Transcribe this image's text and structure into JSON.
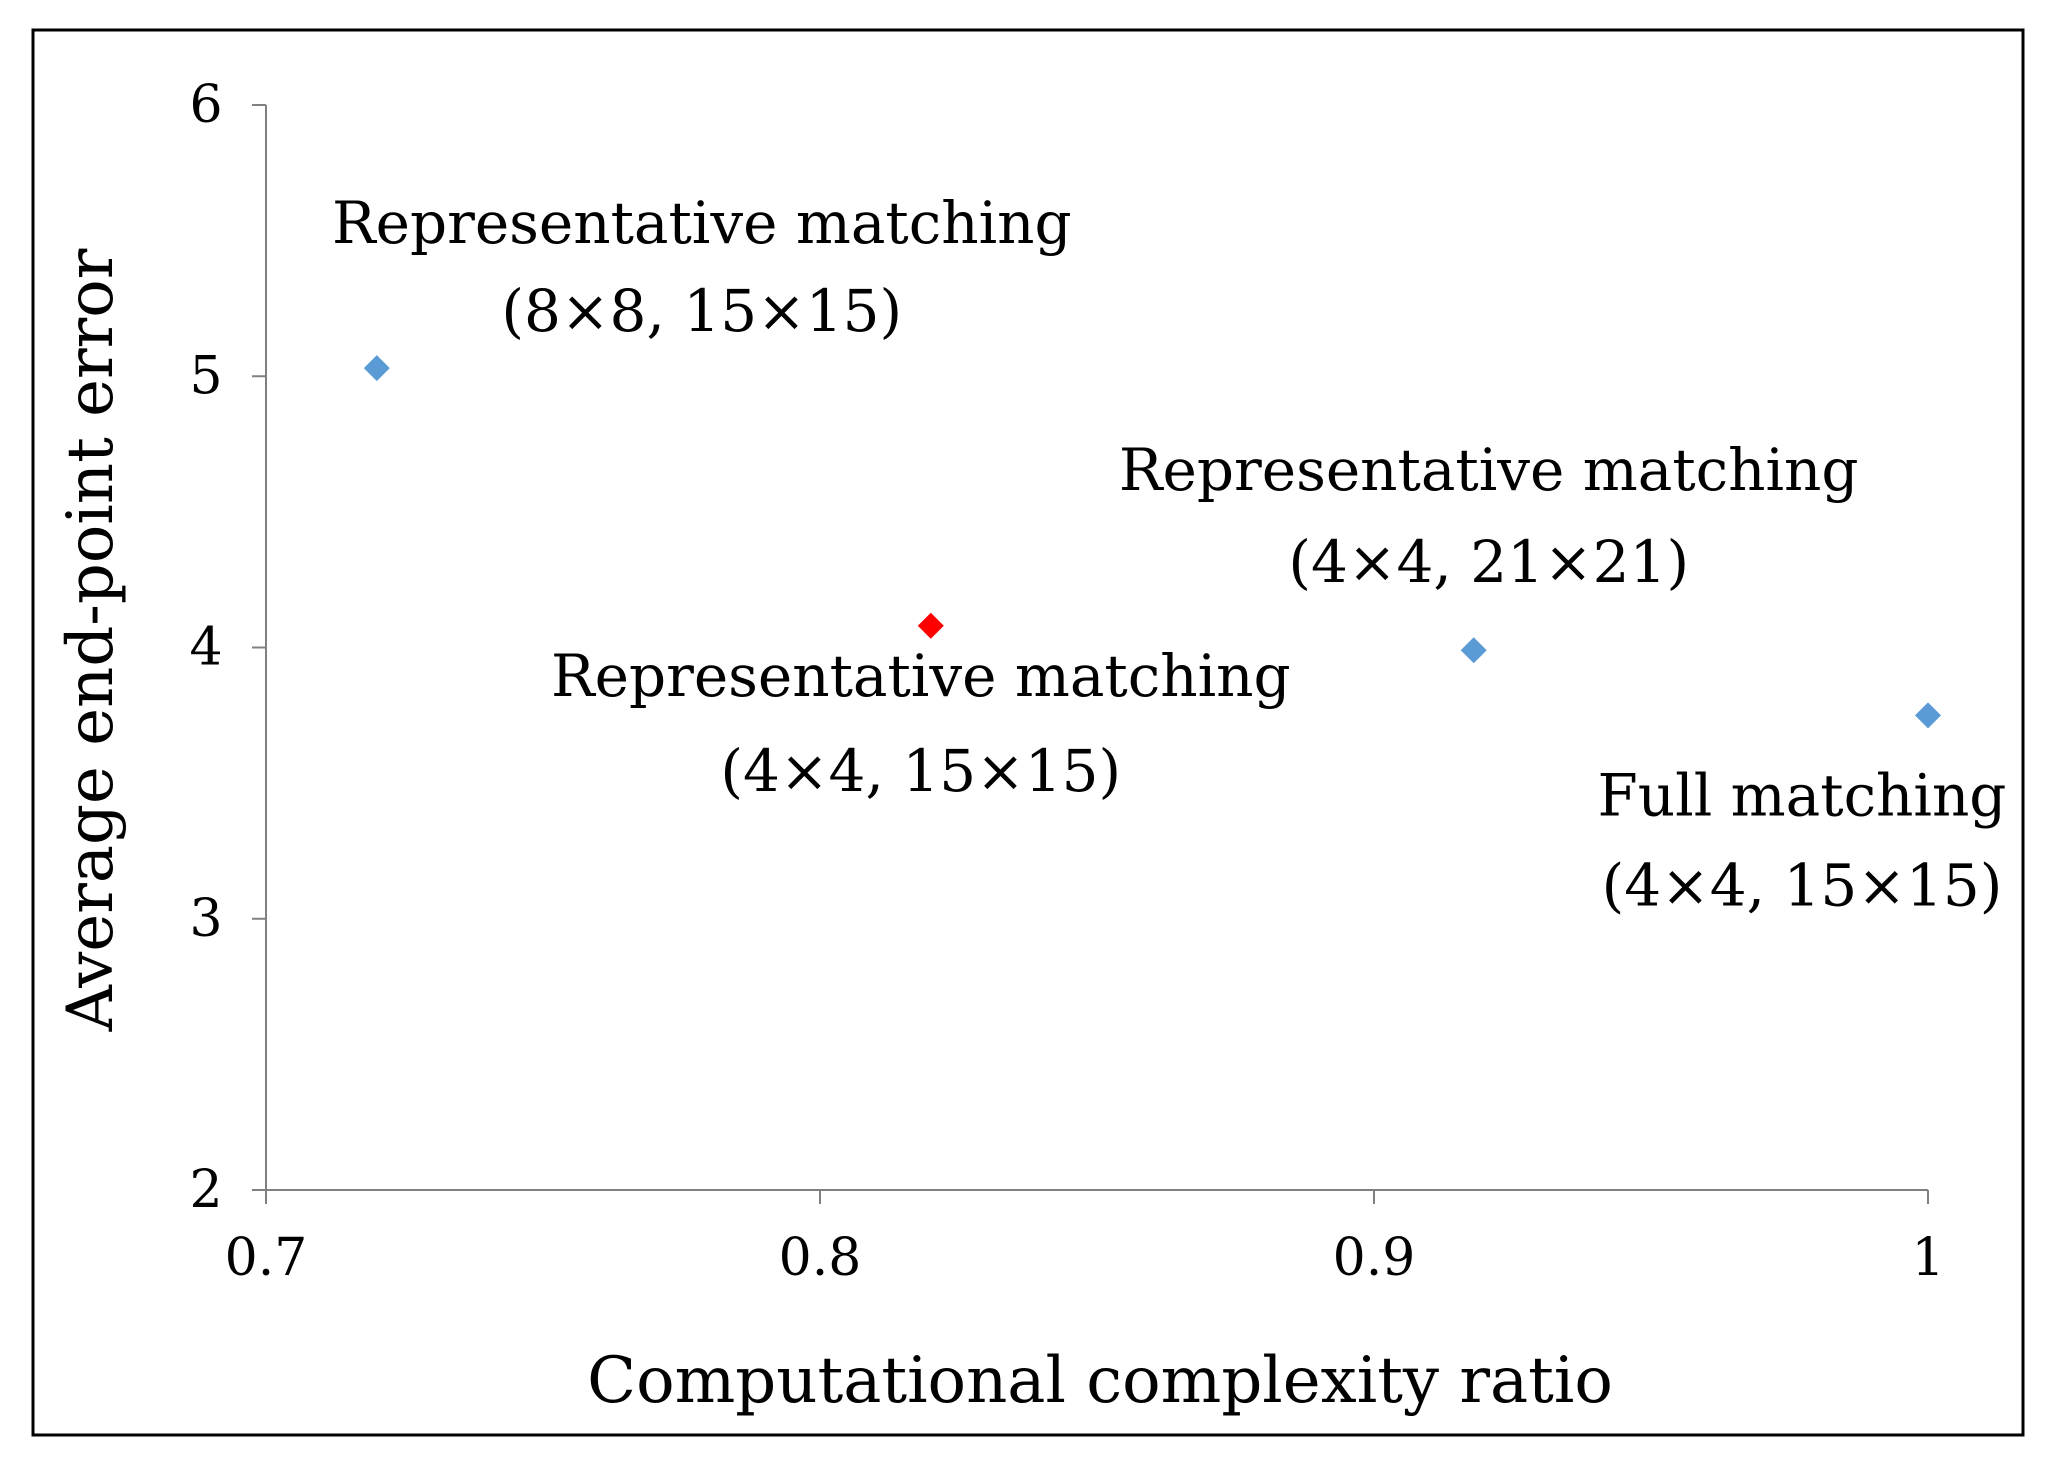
{
  "chart_data": {
    "type": "scatter",
    "xlabel": "Computational complexity ratio",
    "ylabel": "Average end-point error",
    "xlim": [
      0.7,
      1.0
    ],
    "ylim": [
      2,
      6
    ],
    "xticks": [
      "0.7",
      "0.8",
      "0.9",
      "1"
    ],
    "yticks": [
      "2",
      "3",
      "4",
      "5",
      "6"
    ],
    "grid": false,
    "legend": "none",
    "points": [
      {
        "x": 0.72,
        "y": 5.03,
        "color": "#5b9bd5",
        "label": [
          "Representative matching",
          "(8×8, 15×15)"
        ]
      },
      {
        "x": 0.82,
        "y": 4.08,
        "color": "#ff0000",
        "label": [
          "Representative matching",
          "(4×4, 15×15)"
        ]
      },
      {
        "x": 0.918,
        "y": 3.99,
        "color": "#5b9bd5",
        "label": [
          "Representative matching",
          "(4×4, 21×21)"
        ]
      },
      {
        "x": 1.0,
        "y": 3.75,
        "color": "#5b9bd5",
        "label": [
          "Full matching",
          "(4×4, 15×15)"
        ]
      }
    ]
  }
}
